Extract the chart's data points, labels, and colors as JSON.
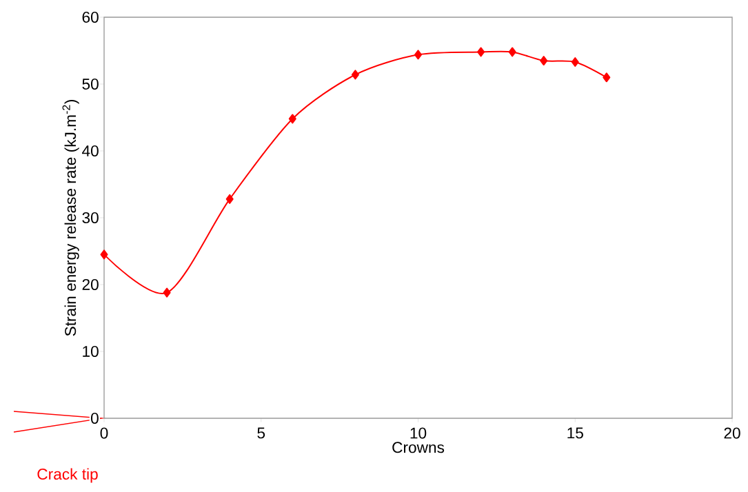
{
  "chart_data": {
    "type": "line",
    "xlabel": "Crowns",
    "ylabel": "Strain energy release rate (kJ.m$^{-2}$)",
    "x": [
      0,
      2,
      4,
      6,
      8,
      10,
      12,
      13,
      14,
      15,
      16
    ],
    "series": [
      {
        "color": "#ff0000",
        "values": [
          24.5,
          18.8,
          32.8,
          44.8,
          51.4,
          54.4,
          54.8,
          54.8,
          53.5,
          53.3,
          51.0
        ]
      }
    ],
    "xlim": [
      0,
      20
    ],
    "xticks": [
      0,
      5,
      10,
      15,
      20
    ],
    "ylim": [
      0,
      60
    ],
    "yticks": [
      0,
      10,
      20,
      30,
      40,
      50,
      60
    ],
    "grid": false,
    "marker": "diamond",
    "line_style": "solid",
    "annotations": [
      "Crack tip"
    ]
  }
}
